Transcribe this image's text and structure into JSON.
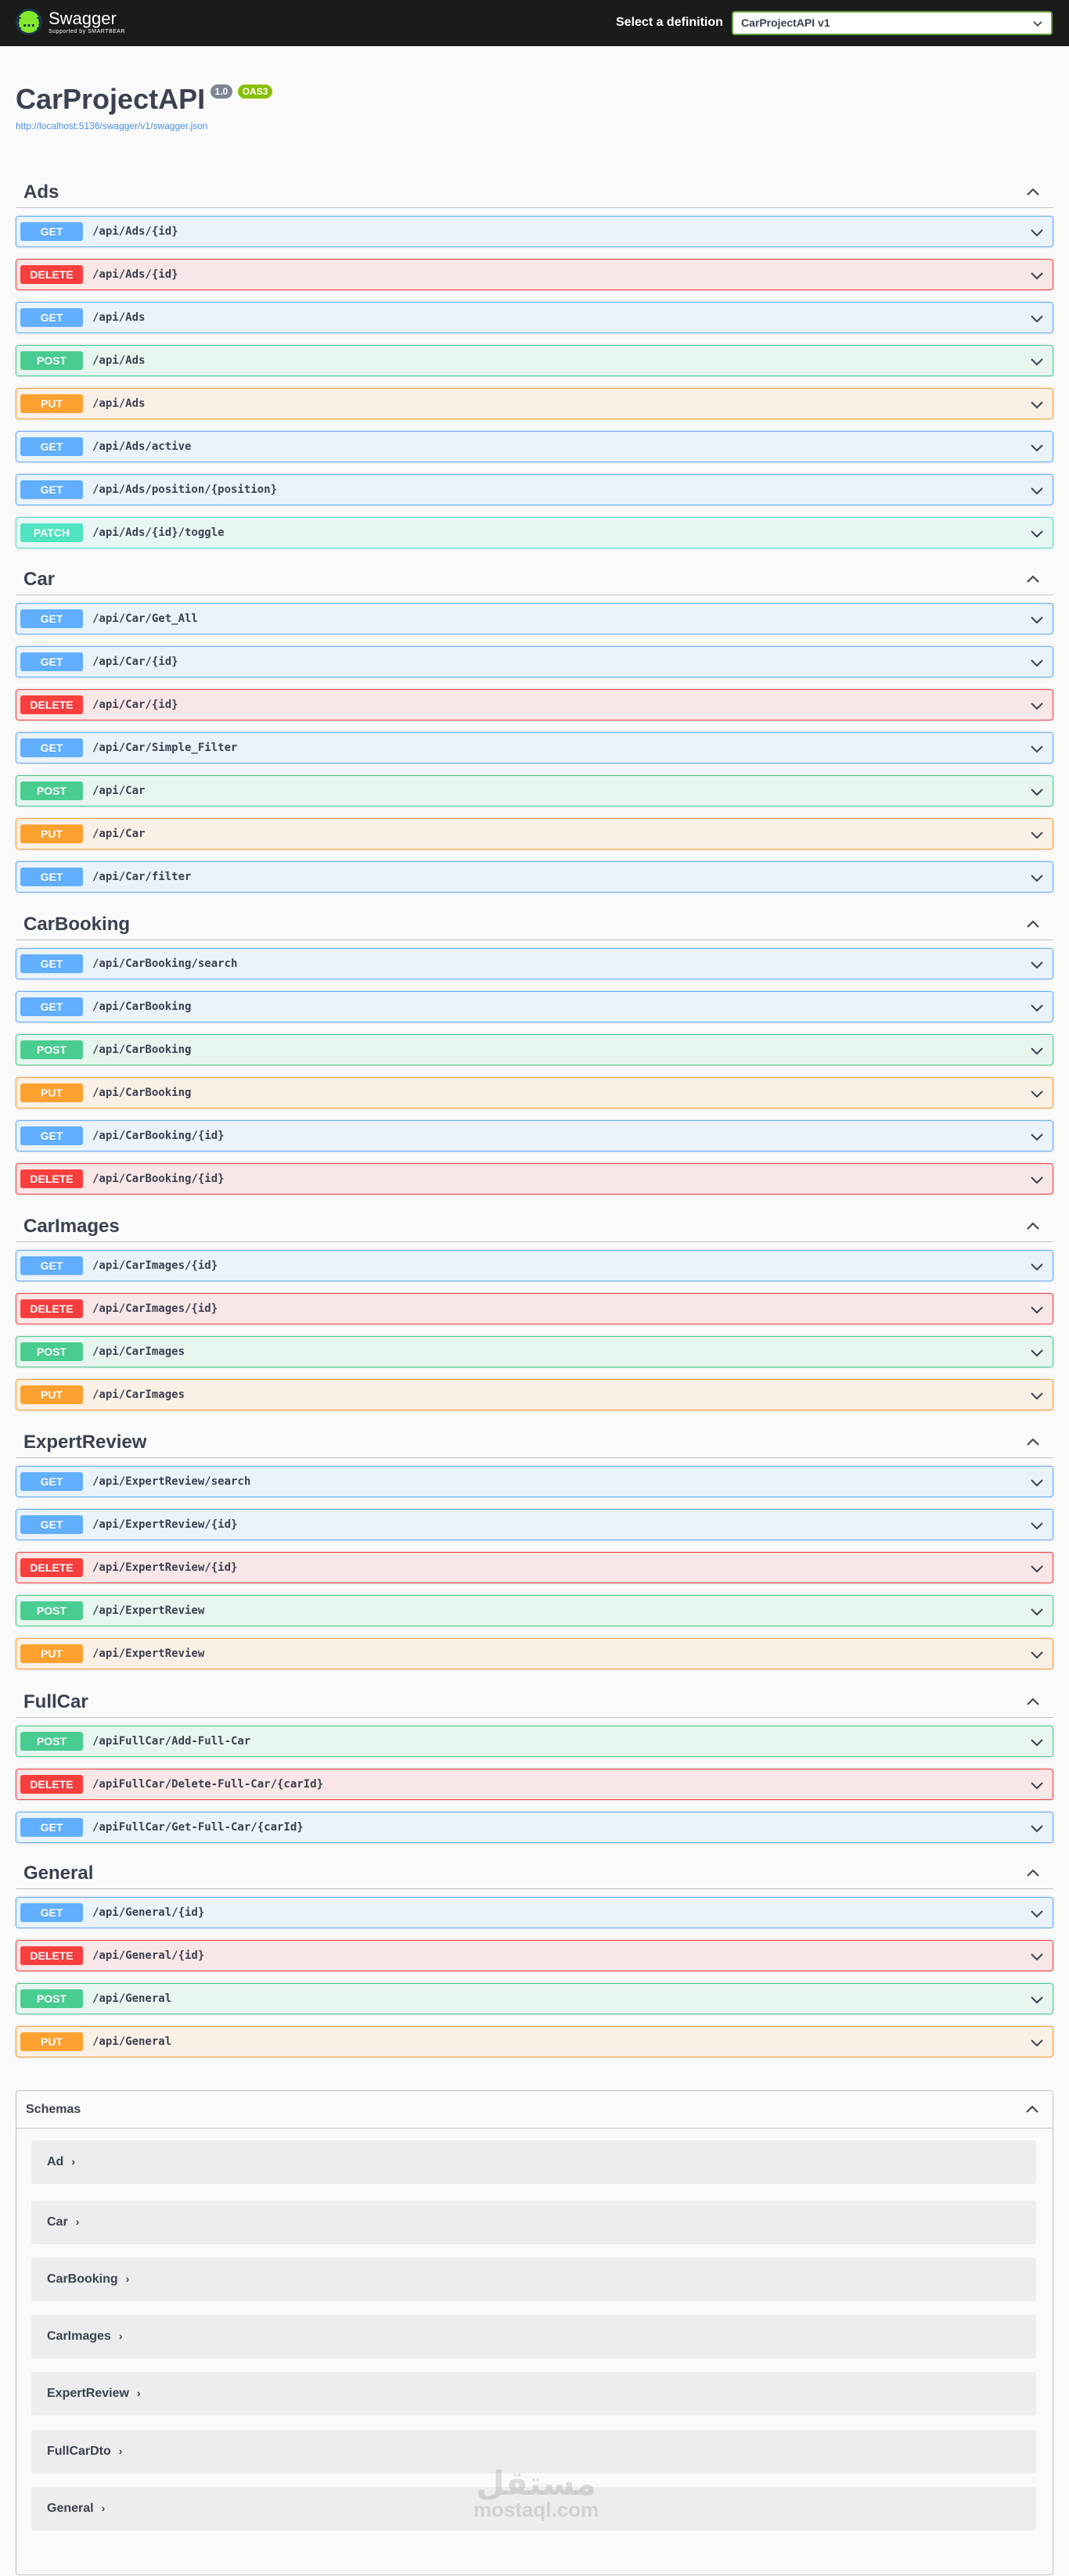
{
  "topbar": {
    "logo_glyph": "{…}",
    "logo_title": "Swagger",
    "logo_sub": "Supported by SMARTBEAR",
    "definition_label": "Select a definition",
    "definition_value": "CarProjectAPI v1"
  },
  "info": {
    "title": "CarProjectAPI",
    "version": "1.0",
    "oas": "OAS3",
    "url": "http://localhost:5136/swagger/v1/swagger.json"
  },
  "sections": [
    {
      "title": "Ads",
      "ops": [
        {
          "method": "GET",
          "path": "/api/Ads/{id}"
        },
        {
          "method": "DELETE",
          "path": "/api/Ads/{id}"
        },
        {
          "method": "GET",
          "path": "/api/Ads"
        },
        {
          "method": "POST",
          "path": "/api/Ads"
        },
        {
          "method": "PUT",
          "path": "/api/Ads"
        },
        {
          "method": "GET",
          "path": "/api/Ads/active"
        },
        {
          "method": "GET",
          "path": "/api/Ads/position/{position}"
        },
        {
          "method": "PATCH",
          "path": "/api/Ads/{id}/toggle"
        }
      ]
    },
    {
      "title": "Car",
      "ops": [
        {
          "method": "GET",
          "path": "/api/Car/Get_All"
        },
        {
          "method": "GET",
          "path": "/api/Car/{id}"
        },
        {
          "method": "DELETE",
          "path": "/api/Car/{id}"
        },
        {
          "method": "GET",
          "path": "/api/Car/Simple_Filter"
        },
        {
          "method": "POST",
          "path": "/api/Car"
        },
        {
          "method": "PUT",
          "path": "/api/Car"
        },
        {
          "method": "GET",
          "path": "/api/Car/filter"
        }
      ]
    },
    {
      "title": "CarBooking",
      "ops": [
        {
          "method": "GET",
          "path": "/api/CarBooking/search"
        },
        {
          "method": "GET",
          "path": "/api/CarBooking"
        },
        {
          "method": "POST",
          "path": "/api/CarBooking"
        },
        {
          "method": "PUT",
          "path": "/api/CarBooking"
        },
        {
          "method": "GET",
          "path": "/api/CarBooking/{id}"
        },
        {
          "method": "DELETE",
          "path": "/api/CarBooking/{id}"
        }
      ]
    },
    {
      "title": "CarImages",
      "ops": [
        {
          "method": "GET",
          "path": "/api/CarImages/{id}"
        },
        {
          "method": "DELETE",
          "path": "/api/CarImages/{id}"
        },
        {
          "method": "POST",
          "path": "/api/CarImages"
        },
        {
          "method": "PUT",
          "path": "/api/CarImages"
        }
      ]
    },
    {
      "title": "ExpertReview",
      "ops": [
        {
          "method": "GET",
          "path": "/api/ExpertReview/search"
        },
        {
          "method": "GET",
          "path": "/api/ExpertReview/{id}"
        },
        {
          "method": "DELETE",
          "path": "/api/ExpertReview/{id}"
        },
        {
          "method": "POST",
          "path": "/api/ExpertReview"
        },
        {
          "method": "PUT",
          "path": "/api/ExpertReview"
        }
      ]
    },
    {
      "title": "FullCar",
      "ops": [
        {
          "method": "POST",
          "path": "/apiFullCar/Add-Full-Car"
        },
        {
          "method": "DELETE",
          "path": "/apiFullCar/Delete-Full-Car/{carId}"
        },
        {
          "method": "GET",
          "path": "/apiFullCar/Get-Full-Car/{carId}"
        }
      ]
    },
    {
      "title": "General",
      "ops": [
        {
          "method": "GET",
          "path": "/api/General/{id}"
        },
        {
          "method": "DELETE",
          "path": "/api/General/{id}"
        },
        {
          "method": "POST",
          "path": "/api/General"
        },
        {
          "method": "PUT",
          "path": "/api/General"
        }
      ]
    }
  ],
  "schemas": {
    "title": "Schemas",
    "models": [
      "Ad",
      "Car",
      "CarBooking",
      "CarImages",
      "ExpertReview",
      "FullCarDto",
      "General"
    ]
  },
  "watermark": {
    "arabic": "مستقل",
    "latin": "mostaql.com"
  },
  "colors": {
    "GET": "#61affe",
    "POST": "#49cc90",
    "PUT": "#fca130",
    "DELETE": "#f93e3e",
    "PATCH": "#50e3c2"
  }
}
